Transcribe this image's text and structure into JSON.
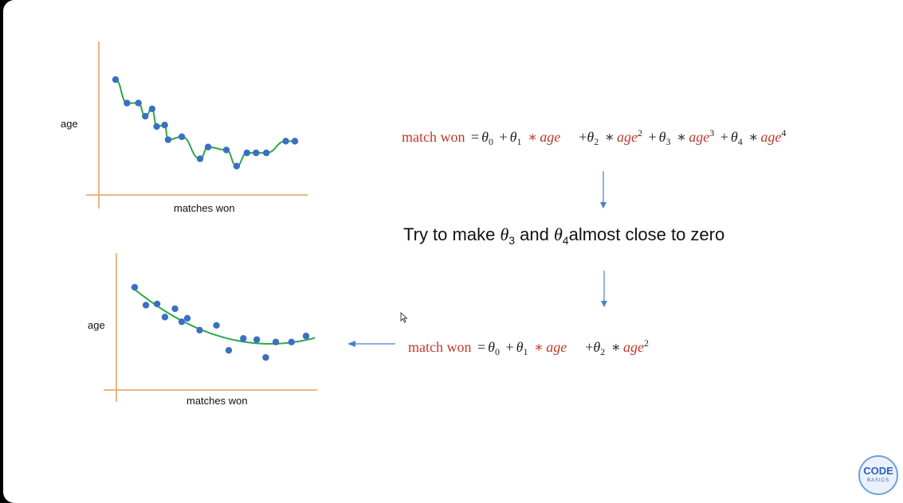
{
  "chart_data": [
    {
      "type": "scatter",
      "xlabel": "matches won",
      "ylabel": "age",
      "fit": "overfit-wiggly-curve",
      "colors": {
        "points": "#3a6fc2",
        "curve": "#2ba84a",
        "axes": "#e0a15a"
      },
      "x": [
        1,
        2,
        3,
        3.6,
        4.2,
        4.6,
        5.3,
        5.6,
        6.8,
        8.4,
        9.1,
        10.7,
        11.6,
        12.5,
        13.3,
        14.2,
        15.9,
        16.7
      ],
      "y": [
        7.6,
        6.0,
        6.0,
        5.1,
        5.6,
        4.4,
        4.5,
        3.5,
        3.7,
        2.2,
        3.0,
        2.8,
        1.7,
        2.6,
        2.6,
        2.6,
        3.4,
        3.4
      ]
    },
    {
      "type": "scatter",
      "xlabel": "matches won",
      "ylabel": "age",
      "fit": "smooth-quadratic-curve",
      "colors": {
        "points": "#3a6fc2",
        "curve": "#2ba84a",
        "axes": "#e0a15a"
      },
      "x": [
        1,
        2,
        3,
        3.7,
        4.6,
        5.2,
        5.7,
        6.8,
        8.3,
        9.4,
        10.7,
        11.9,
        12.7,
        13.6,
        15.0,
        16.3
      ],
      "y": [
        8.3,
        6.8,
        6.9,
        5.8,
        6.5,
        5.4,
        5.7,
        4.7,
        5.1,
        3.0,
        4.0,
        3.9,
        2.4,
        3.7,
        3.7,
        4.2
      ]
    }
  ],
  "equations": {
    "eq1": {
      "lhs": "match won",
      "eq": "=",
      "theta0": "θ",
      "sub0": "0",
      "theta1": "θ",
      "sub1": "1",
      "age": "age",
      "theta2": "θ",
      "sub2": "2",
      "pow2": "2",
      "theta3": "θ",
      "sub3": "3",
      "pow3": "3",
      "theta4": "θ",
      "sub4": "4",
      "pow4": "4",
      "plus": "+",
      "mul": "∗"
    },
    "eq2": {
      "lhs": "match won",
      "eq": "=",
      "theta0": "θ",
      "sub0": "0",
      "theta1": "θ",
      "sub1": "1",
      "age": "age",
      "theta2": "θ",
      "sub2": "2",
      "pow2": "2",
      "plus": "+",
      "mul": "∗"
    }
  },
  "try_text": {
    "prefix": "Try to make ",
    "theta": "θ",
    "sub3": "3",
    "and": " and ",
    "sub4": "4",
    "suffix": "almost close to zero"
  },
  "logo": {
    "top": "CODE",
    "bottom": "BASICS"
  },
  "colors": {
    "arrow": "#4a7fd0",
    "red_text": "#c0392b"
  }
}
